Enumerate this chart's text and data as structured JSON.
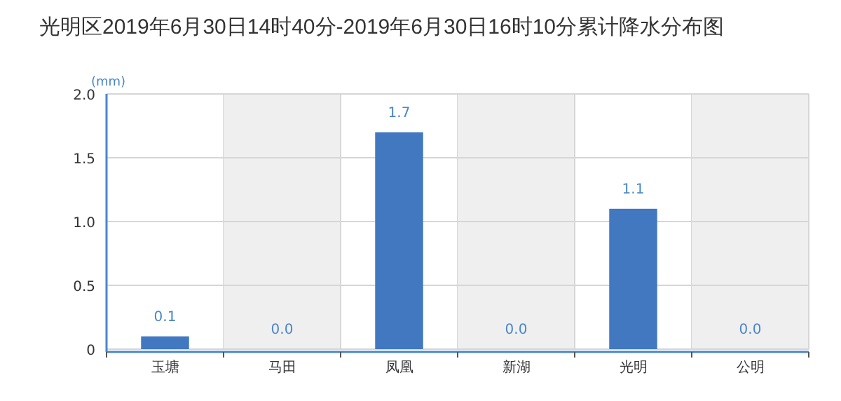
{
  "chart_data": {
    "type": "bar",
    "title": "光明区2019年6月30日14时40分-2019年6月30日16时10分累计降水分布图",
    "ylabel": "(mm)",
    "categories": [
      "玉塘",
      "马田",
      "凤凰",
      "新湖",
      "光明",
      "公明"
    ],
    "values": [
      0.1,
      0,
      1.7,
      0,
      1.1,
      0
    ],
    "value_labels": [
      "0.1",
      "0.0",
      "1.7",
      "0.0",
      "1.1",
      "0.0"
    ],
    "color": "#4178c0",
    "ylim": [
      0,
      2
    ],
    "yticks": [
      0,
      0.5,
      {
        "value": 1,
        "label": "1.0"
      },
      1.5,
      {
        "value": 2,
        "label": "2.0"
      }
    ],
    "grid": true
  }
}
